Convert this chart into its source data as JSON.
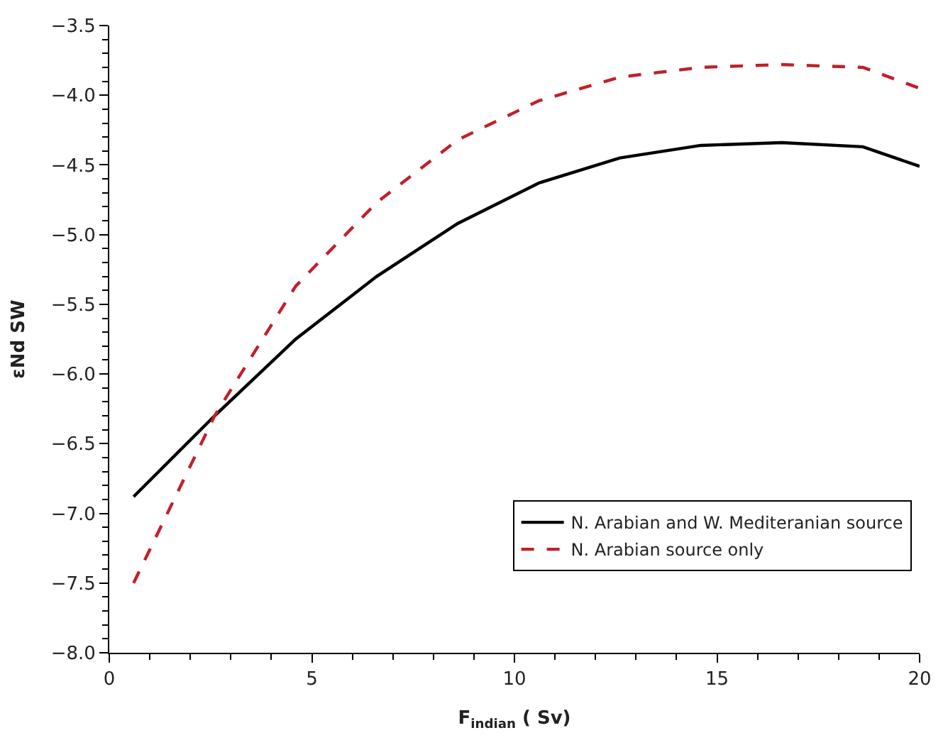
{
  "chart_data": {
    "type": "line",
    "xlabel": "F$_{indian}$ ( Sv)",
    "ylabel": "εNd SW",
    "x": [
      0.6,
      2.6,
      4.6,
      6.6,
      8.6,
      10.6,
      12.6,
      14.6,
      16.6,
      18.6,
      20
    ],
    "series": [
      {
        "name": "N. Arabian and W. Mediteranian source",
        "color": "#000000",
        "line_style": "solid",
        "values": [
          -6.88,
          -6.3,
          -5.75,
          -5.3,
          -4.92,
          -4.63,
          -4.45,
          -4.36,
          -4.34,
          -4.37,
          -4.51
        ]
      },
      {
        "name": "N. Arabian source only",
        "color": "#c0202a",
        "line_style": "dashed",
        "values": [
          -7.5,
          -6.3,
          -5.37,
          -4.77,
          -4.32,
          -4.04,
          -3.87,
          -3.8,
          -3.78,
          -3.8,
          -3.95
        ]
      }
    ],
    "xlim": [
      0,
      20
    ],
    "xticks": [
      0,
      5,
      10,
      15,
      20
    ],
    "ylim": [
      -8.0,
      -3.5
    ],
    "yticks": [
      {
        "value": -8.0,
        "label": "−8.0"
      },
      {
        "value": -7.5,
        "label": "−7.5"
      },
      {
        "value": -7.0,
        "label": "−7.0"
      },
      {
        "value": -6.5,
        "label": "−6.5"
      },
      {
        "value": -6.0,
        "label": "−6.0"
      },
      {
        "value": -5.5,
        "label": "−5.5"
      },
      {
        "value": -5.0,
        "label": "−5.0"
      },
      {
        "value": -4.5,
        "label": "−4.5"
      },
      {
        "value": -4.0,
        "label": "−4.0"
      },
      {
        "value": -3.5,
        "label": "−3.5"
      }
    ],
    "legend": "bottom right"
  }
}
